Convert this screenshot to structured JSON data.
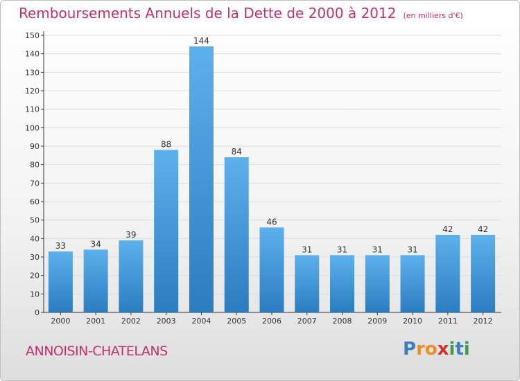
{
  "title": "Remboursements Annuels de la Dette de 2000 à 2012",
  "unit_note": "(en milliers d'€)",
  "city": "ANNOISIN-CHATELANS",
  "brand": {
    "letters": [
      "P",
      "r",
      "o",
      "x",
      "i",
      "t",
      "i"
    ],
    "colors": [
      "#3a7fc4",
      "#e8902a",
      "#e8902a",
      "#d6302a",
      "#3aa04a",
      "#3a7fc4",
      "#3aa04a"
    ]
  },
  "colors": {
    "title": "#c0306c",
    "bar_light": "#5cb0ec",
    "bar_dark": "#2a7ec0",
    "grid": "#dddddd",
    "axis": "#333333"
  },
  "chart_data": {
    "type": "bar",
    "title": "Remboursements Annuels de la Dette de 2000 à 2012",
    "xlabel": "",
    "ylabel": "",
    "categories": [
      "2000",
      "2001",
      "2002",
      "2003",
      "2004",
      "2005",
      "2006",
      "2007",
      "2008",
      "2009",
      "2010",
      "2011",
      "2012"
    ],
    "values": [
      33,
      34,
      39,
      88,
      144,
      84,
      46,
      31,
      31,
      31,
      31,
      42,
      42
    ],
    "ylim": [
      0,
      150
    ],
    "yticks": [
      0,
      10,
      20,
      30,
      40,
      50,
      60,
      70,
      80,
      90,
      100,
      110,
      120,
      130,
      140,
      150
    ],
    "grid": true
  }
}
